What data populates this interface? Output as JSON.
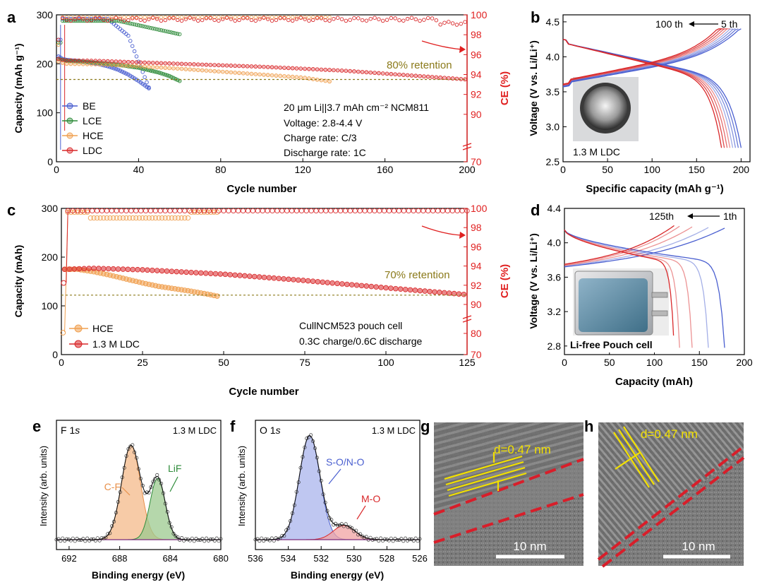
{
  "colors": {
    "BE": "#4a5fd0",
    "LCE": "#2e8b3a",
    "HCE": "#f0a050",
    "LDC": "#d9282a",
    "ce_axis": "#e02020",
    "retention": "#8b7a1a",
    "fit_cf": "#f4b98a",
    "fit_lif": "#9cc98f",
    "fit_so": "#aab4ec",
    "fit_mo": "#f2a3a3"
  },
  "panel_a": {
    "letter": "a",
    "xlabel": "Cycle number",
    "ylabel": "Capacity (mAh g⁻¹)",
    "ylabel2": "CE (%)",
    "retention_label": "80% retention",
    "legend": [
      "BE",
      "LCE",
      "HCE",
      "LDC"
    ],
    "info": [
      "20 μm Li||3.7 mAh cm⁻² NCM811",
      "Voltage: 2.8-4.4 V",
      "Charge rate: C/3",
      "Discharge rate: 1C"
    ],
    "xticks": [
      "0",
      "40",
      "80",
      "120",
      "160",
      "200"
    ],
    "yticks": [
      "0",
      "100",
      "200",
      "300"
    ],
    "y2ticks": [
      "70",
      "90",
      "92",
      "94",
      "96",
      "98",
      "100"
    ]
  },
  "panel_b": {
    "letter": "b",
    "xlabel": "Specific capacity (mAh g⁻¹)",
    "ylabel": "Voltage (V vs. Li/Li⁺)",
    "annot_left": "100 th",
    "annot_right": "5 th",
    "inset_label": "1.3 M LDC",
    "xticks": [
      "0",
      "50",
      "100",
      "150",
      "200"
    ],
    "yticks": [
      "2.5",
      "3.0",
      "3.5",
      "4.0",
      "4.5"
    ]
  },
  "panel_c": {
    "letter": "c",
    "xlabel": "Cycle number",
    "ylabel": "Capacity (mAh)",
    "ylabel2": "CE (%)",
    "retention_label": "70% retention",
    "legend": [
      "HCE",
      "1.3 M LDC"
    ],
    "info": [
      "CullNCM523 pouch cell",
      "0.3C charge/0.6C discharge"
    ],
    "xticks": [
      "0",
      "25",
      "50",
      "75",
      "100",
      "125"
    ],
    "yticks": [
      "0",
      "100",
      "200",
      "300"
    ],
    "y2ticks": [
      "70",
      "80",
      "90",
      "92",
      "94",
      "96",
      "98",
      "100"
    ]
  },
  "panel_d": {
    "letter": "d",
    "xlabel": "Capacity (mAh)",
    "ylabel": "Voltage (V vs. Li/Li⁺)",
    "annot_left": "125th",
    "annot_right": "1th",
    "inset_label": "Li-free Pouch cell",
    "xticks": [
      "0",
      "50",
      "100",
      "150",
      "200"
    ],
    "yticks": [
      "2.8",
      "3.2",
      "3.6",
      "4.0",
      "4.4"
    ]
  },
  "panel_e": {
    "letter": "e",
    "core": "F 1",
    "core_italic": "s",
    "sample": "1.3 M LDC",
    "xlabel": "Binding energy (eV)",
    "ylabel": "Intensity (arb. units)",
    "peak1": "C-F",
    "peak2": "LiF",
    "xticks": [
      "692",
      "688",
      "684",
      "680"
    ]
  },
  "panel_f": {
    "letter": "f",
    "core": "O 1",
    "core_italic": "s",
    "sample": "1.3 M LDC",
    "xlabel": "Binding energy (eV)",
    "ylabel": "Intensity (arb. units)",
    "peak1": "S-O/N-O",
    "peak2": "M-O",
    "xticks": [
      "536",
      "534",
      "532",
      "530",
      "528",
      "526"
    ]
  },
  "panel_g": {
    "letter": "g",
    "spacing": "d=0.47 nm",
    "scale": "10 nm"
  },
  "panel_h": {
    "letter": "h",
    "spacing": "d=0.47 nm",
    "scale": "10 nm"
  },
  "chart_data": [
    {
      "type": "scatter",
      "panel": "a",
      "x_range": [
        0,
        200
      ],
      "ylim": [
        0,
        300
      ],
      "y2lim": [
        70,
        100
      ],
      "series": [
        {
          "name": "BE",
          "x": [
            1,
            3,
            5,
            10,
            15,
            20,
            25,
            30,
            35,
            40,
            45
          ],
          "y": [
            215,
            210,
            208,
            206,
            203,
            200,
            195,
            188,
            178,
            165,
            150
          ]
        },
        {
          "name": "LCE",
          "x": [
            1,
            3,
            5,
            10,
            20,
            30,
            40,
            50,
            55,
            60
          ],
          "y": [
            210,
            208,
            206,
            205,
            202,
            198,
            192,
            182,
            175,
            165
          ]
        },
        {
          "name": "HCE",
          "x": [
            1,
            3,
            5,
            20,
            40,
            60,
            80,
            100,
            120,
            128,
            133
          ],
          "y": [
            205,
            202,
            200,
            199,
            195,
            190,
            184,
            178,
            172,
            167,
            164
          ]
        },
        {
          "name": "LDC",
          "x": [
            1,
            3,
            5,
            20,
            40,
            60,
            80,
            100,
            120,
            140,
            160,
            180,
            200
          ],
          "y": [
            210,
            208,
            207,
            206,
            203,
            200,
            197,
            194,
            190,
            186,
            180,
            174,
            168
          ]
        }
      ],
      "retention_line_y": 168
    },
    {
      "type": "line",
      "panel": "b",
      "xlim": [
        0,
        210
      ],
      "ylim": [
        2.5,
        4.6
      ],
      "series": [
        {
          "name": "5 th",
          "charge_end_capacity": 200,
          "discharge_end_capacity": 200
        },
        {
          "name": "100 th",
          "charge_end_capacity": 180,
          "discharge_end_capacity": 178
        }
      ]
    },
    {
      "type": "scatter",
      "panel": "c",
      "x_range": [
        0,
        125
      ],
      "ylim": [
        0,
        300
      ],
      "y2lim": [
        70,
        100
      ],
      "series": [
        {
          "name": "HCE",
          "x": [
            1,
            5,
            10,
            15,
            20,
            25,
            30,
            35,
            40,
            45,
            48
          ],
          "y": [
            175,
            175,
            170,
            163,
            155,
            147,
            140,
            135,
            130,
            124,
            120
          ]
        },
        {
          "name": "1.3 M LDC",
          "x": [
            1,
            10,
            25,
            50,
            75,
            100,
            125
          ],
          "y": [
            175,
            177,
            174,
            165,
            152,
            137,
            123
          ]
        }
      ],
      "retention_line_y": 122
    },
    {
      "type": "line",
      "panel": "d",
      "xlim": [
        0,
        200
      ],
      "ylim": [
        2.7,
        4.4
      ],
      "series": [
        {
          "name": "1th",
          "discharge_end_capacity": 178
        },
        {
          "name": "125th",
          "discharge_end_capacity": 122
        }
      ]
    },
    {
      "type": "line",
      "panel": "e",
      "x_range": [
        693,
        680
      ],
      "series": [
        {
          "name": "C-F",
          "center": 687.1,
          "height": 0.86,
          "width": 1.25
        },
        {
          "name": "LiF",
          "center": 685.0,
          "height": 0.56,
          "width": 1.0
        }
      ]
    },
    {
      "type": "line",
      "panel": "f",
      "x_range": [
        536,
        526
      ],
      "series": [
        {
          "name": "S-O/N-O",
          "center": 532.7,
          "height": 0.95,
          "width": 1.05
        },
        {
          "name": "M-O",
          "center": 530.6,
          "height": 0.13,
          "width": 1.1
        }
      ]
    }
  ]
}
